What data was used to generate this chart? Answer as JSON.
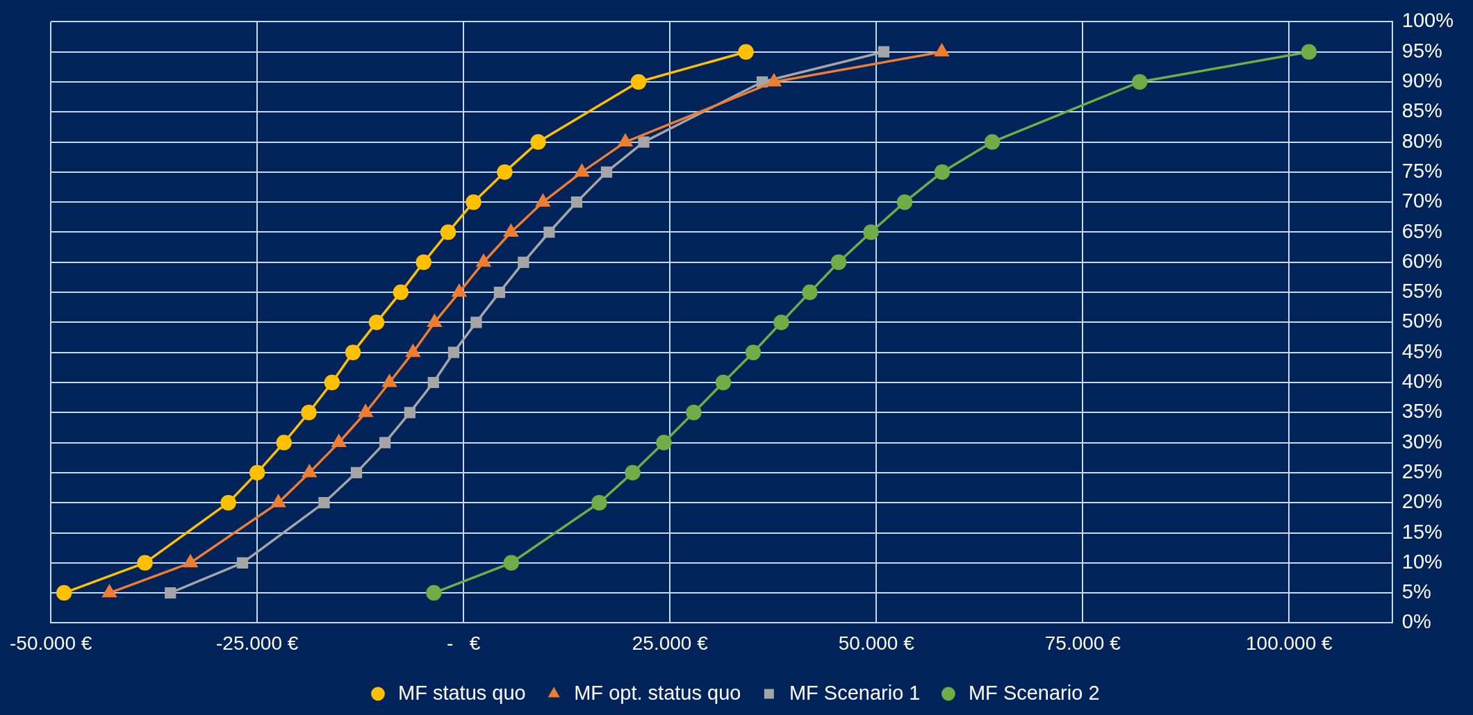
{
  "chart_data": {
    "type": "line",
    "series": [
      {
        "name": "MF status quo",
        "color": "#ffc000",
        "marker": "circle",
        "x": [
          -48400,
          -38600,
          -28500,
          -25000,
          -21760,
          -18750,
          -15940,
          -13400,
          -10540,
          -7610,
          -4840,
          -1870,
          1200,
          4980,
          9030,
          21190,
          34200
        ],
        "values": [
          5,
          10,
          20,
          25,
          30,
          35,
          40,
          45,
          50,
          55,
          60,
          65,
          70,
          75,
          80,
          90,
          95
        ]
      },
      {
        "name": "MF opt. status quo",
        "color": "#ed7d31",
        "marker": "triangle",
        "x": [
          -42900,
          -33090,
          -22440,
          -18680,
          -15110,
          -11870,
          -8980,
          -6130,
          -3520,
          -530,
          2420,
          5740,
          9610,
          14330,
          19590,
          37600,
          57930
        ],
        "values": [
          5,
          10,
          20,
          25,
          30,
          35,
          40,
          45,
          50,
          55,
          60,
          65,
          70,
          75,
          80,
          90,
          95
        ]
      },
      {
        "name": "MF Scenario 1",
        "color": "#a5a5a5",
        "marker": "square",
        "x": [
          -35520,
          -26780,
          -16900,
          -12980,
          -9520,
          -6510,
          -3660,
          -1200,
          1530,
          4350,
          7250,
          10370,
          13700,
          17320,
          21820,
          36180,
          50900
        ],
        "values": [
          5,
          10,
          20,
          25,
          30,
          35,
          40,
          45,
          50,
          55,
          60,
          65,
          70,
          75,
          80,
          90,
          95
        ]
      },
      {
        "name": "MF Scenario 2",
        "color": "#70ad47",
        "marker": "circle",
        "x": [
          -3600,
          5780,
          16430,
          20480,
          24260,
          27880,
          31460,
          35080,
          38490,
          41940,
          45430,
          49350,
          53430,
          57970,
          64040,
          81900,
          102400
        ],
        "values": [
          5,
          10,
          20,
          25,
          30,
          35,
          40,
          45,
          50,
          55,
          60,
          65,
          70,
          75,
          80,
          90,
          95
        ]
      }
    ],
    "xlim": [
      -50000,
      112500
    ],
    "xticks": [
      {
        "value": -50000,
        "label": "-50.000 €"
      },
      {
        "value": -25000,
        "label": "-25.000 €"
      },
      {
        "value": 0,
        "label": "-   €"
      },
      {
        "value": 25000,
        "label": "25.000 €"
      },
      {
        "value": 50000,
        "label": "50.000 €"
      },
      {
        "value": 75000,
        "label": "75.000 €"
      },
      {
        "value": 100000,
        "label": "100.000 €"
      }
    ],
    "ylim": [
      0,
      100
    ],
    "yticks": [
      {
        "value": 0,
        "label": "0%"
      },
      {
        "value": 5,
        "label": "5%"
      },
      {
        "value": 10,
        "label": "10%"
      },
      {
        "value": 15,
        "label": "15%"
      },
      {
        "value": 20,
        "label": "20%"
      },
      {
        "value": 25,
        "label": "25%"
      },
      {
        "value": 30,
        "label": "30%"
      },
      {
        "value": 35,
        "label": "35%"
      },
      {
        "value": 40,
        "label": "40%"
      },
      {
        "value": 45,
        "label": "45%"
      },
      {
        "value": 50,
        "label": "50%"
      },
      {
        "value": 55,
        "label": "55%"
      },
      {
        "value": 60,
        "label": "60%"
      },
      {
        "value": 65,
        "label": "65%"
      },
      {
        "value": 70,
        "label": "70%"
      },
      {
        "value": 75,
        "label": "75%"
      },
      {
        "value": 80,
        "label": "80%"
      },
      {
        "value": 85,
        "label": "85%"
      },
      {
        "value": 90,
        "label": "90%"
      },
      {
        "value": 95,
        "label": "95%"
      },
      {
        "value": 100,
        "label": "100%"
      }
    ],
    "grid": true,
    "legend": "bottom",
    "line_style": "solid"
  }
}
